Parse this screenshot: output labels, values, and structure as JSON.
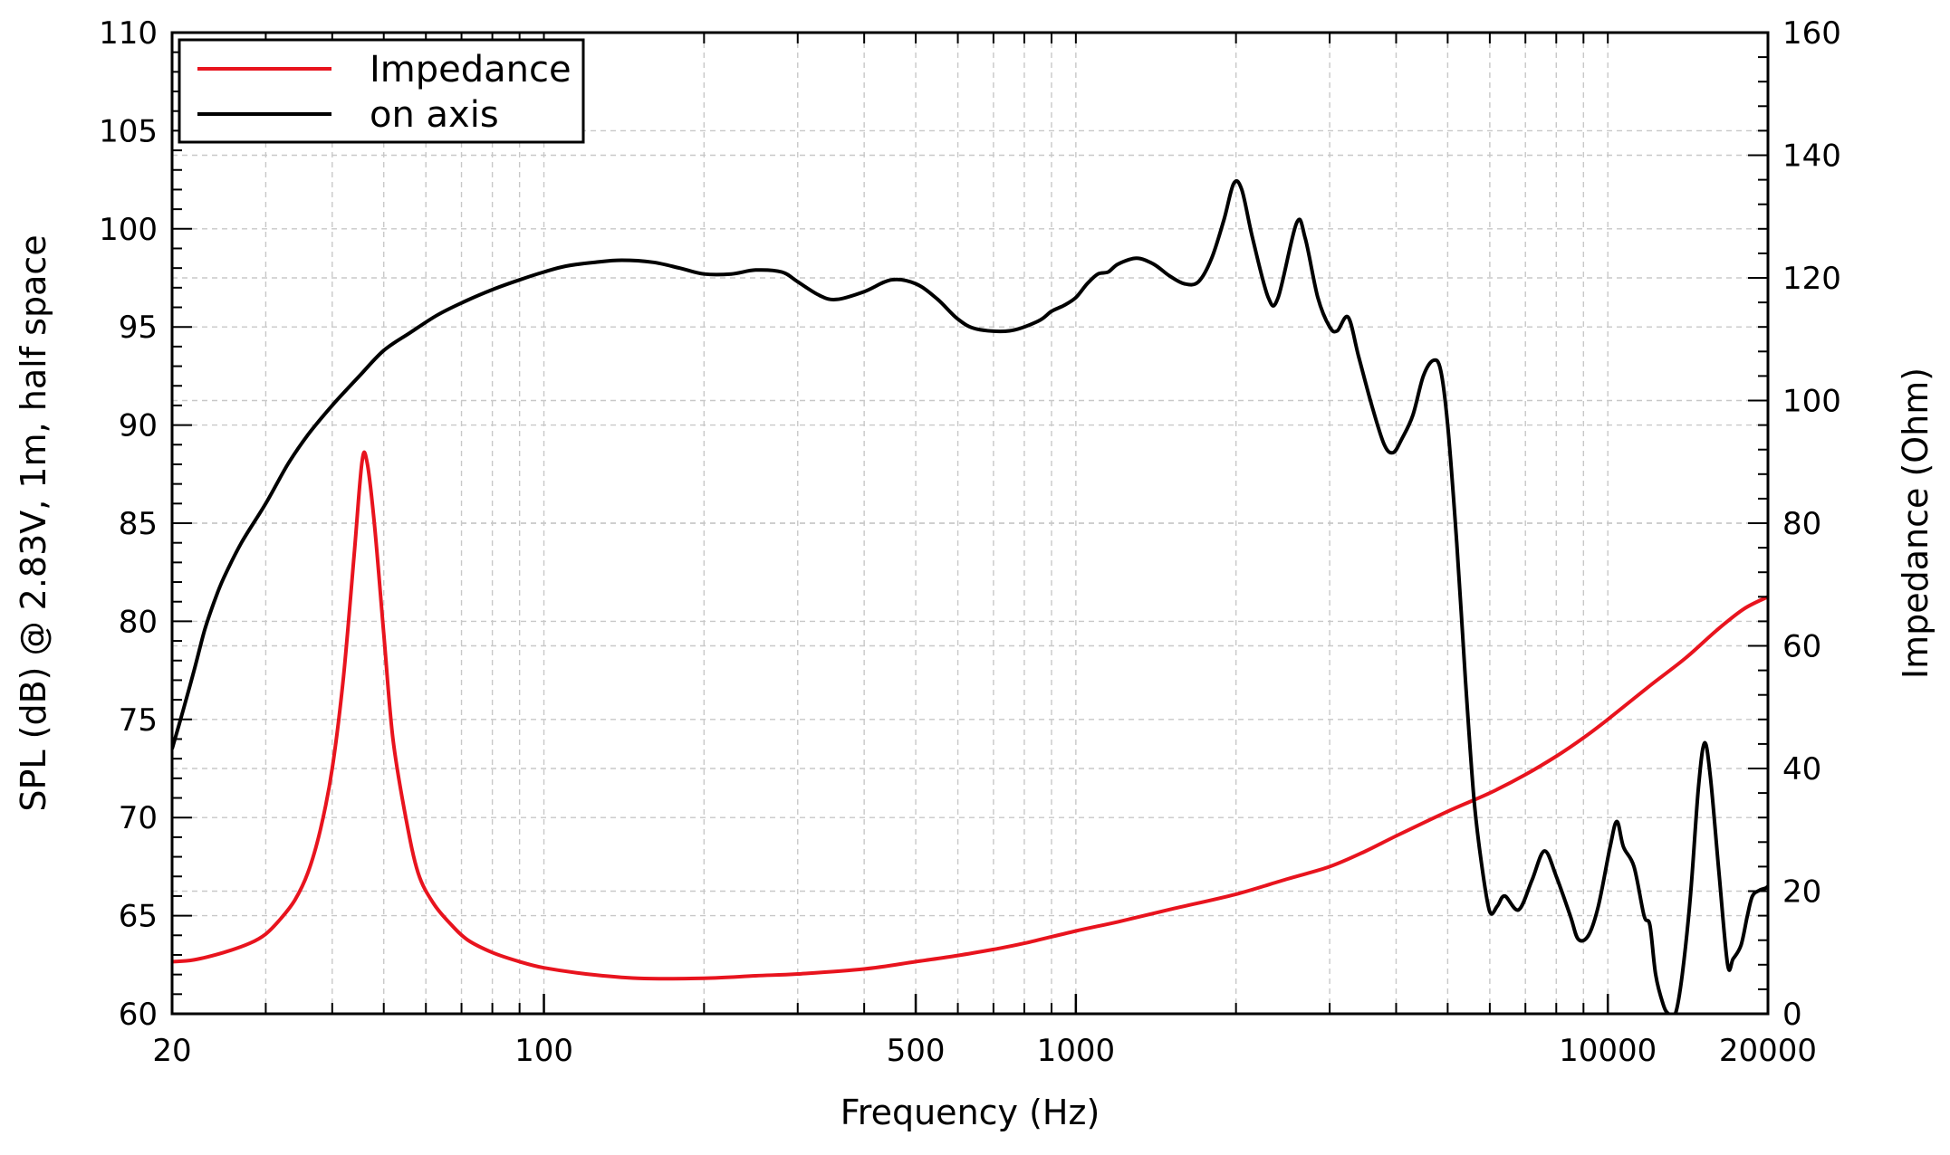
{
  "chart_data": {
    "type": "line",
    "title": "",
    "xlabel": "Frequency (Hz)",
    "ylabel": "SPL (dB) @ 2.83V, 1m, half space",
    "y2label": "Impedance (Ohm)",
    "xscale": "log",
    "xlim": [
      20,
      20000
    ],
    "ylim": [
      60,
      110
    ],
    "y2lim": [
      0,
      160
    ],
    "grid": true,
    "legend_position": "top-left",
    "x_ticks": [
      {
        "value": 20,
        "label": "20"
      },
      {
        "value": 100,
        "label": "100"
      },
      {
        "value": 500,
        "label": "500"
      },
      {
        "value": 1000,
        "label": "1000"
      },
      {
        "value": 10000,
        "label": "10000"
      },
      {
        "value": 20000,
        "label": "20000"
      }
    ],
    "y_ticks": [
      {
        "value": 60,
        "label": "60"
      },
      {
        "value": 65,
        "label": "65"
      },
      {
        "value": 70,
        "label": "70"
      },
      {
        "value": 75,
        "label": "75"
      },
      {
        "value": 80,
        "label": "80"
      },
      {
        "value": 85,
        "label": "85"
      },
      {
        "value": 90,
        "label": "90"
      },
      {
        "value": 95,
        "label": "95"
      },
      {
        "value": 100,
        "label": "100"
      },
      {
        "value": 105,
        "label": "105"
      },
      {
        "value": 110,
        "label": "110"
      }
    ],
    "y2_ticks": [
      {
        "value": 0,
        "label": "0"
      },
      {
        "value": 20,
        "label": "20"
      },
      {
        "value": 40,
        "label": "40"
      },
      {
        "value": 60,
        "label": "60"
      },
      {
        "value": 80,
        "label": "80"
      },
      {
        "value": 100,
        "label": "100"
      },
      {
        "value": 120,
        "label": "120"
      },
      {
        "value": 140,
        "label": "140"
      },
      {
        "value": 160,
        "label": "160"
      }
    ],
    "series": [
      {
        "name": "Impedance",
        "axis": "right",
        "color": "#e8141e",
        "points": [
          [
            20,
            8.5
          ],
          [
            22,
            8.8
          ],
          [
            25,
            10.0
          ],
          [
            28,
            11.5
          ],
          [
            30,
            13.0
          ],
          [
            32,
            15.5
          ],
          [
            34,
            18.5
          ],
          [
            36,
            23.0
          ],
          [
            38,
            30.0
          ],
          [
            40,
            40.0
          ],
          [
            42,
            55.0
          ],
          [
            44,
            75.0
          ],
          [
            45.5,
            90.0
          ],
          [
            46.5,
            90.0
          ],
          [
            48,
            80.0
          ],
          [
            50,
            62.0
          ],
          [
            52,
            45.0
          ],
          [
            55,
            32.0
          ],
          [
            58,
            23.0
          ],
          [
            62,
            18.0
          ],
          [
            67,
            14.5
          ],
          [
            72,
            12.0
          ],
          [
            80,
            10.0
          ],
          [
            90,
            8.5
          ],
          [
            100,
            7.5
          ],
          [
            120,
            6.5
          ],
          [
            150,
            5.8
          ],
          [
            200,
            5.8
          ],
          [
            250,
            6.2
          ],
          [
            300,
            6.5
          ],
          [
            400,
            7.3
          ],
          [
            500,
            8.5
          ],
          [
            600,
            9.5
          ],
          [
            700,
            10.5
          ],
          [
            800,
            11.5
          ],
          [
            1000,
            13.5
          ],
          [
            1200,
            15.0
          ],
          [
            1500,
            17.0
          ],
          [
            2000,
            19.5
          ],
          [
            2500,
            22.0
          ],
          [
            3000,
            24.0
          ],
          [
            3500,
            26.5
          ],
          [
            4000,
            29.0
          ],
          [
            5000,
            33.0
          ],
          [
            6000,
            36.0
          ],
          [
            7000,
            39.0
          ],
          [
            8000,
            42.0
          ],
          [
            9000,
            45.0
          ],
          [
            10000,
            48.0
          ],
          [
            12000,
            53.5
          ],
          [
            14000,
            58.0
          ],
          [
            16000,
            62.5
          ],
          [
            18000,
            66.0
          ],
          [
            20000,
            68.0
          ]
        ]
      },
      {
        "name": "on axis",
        "axis": "left",
        "color": "#000000",
        "points": [
          [
            20,
            73.5
          ],
          [
            21,
            75.5
          ],
          [
            22,
            77.5
          ],
          [
            23,
            79.5
          ],
          [
            24,
            81.0
          ],
          [
            25,
            82.2
          ],
          [
            27,
            84.0
          ],
          [
            30,
            86.0
          ],
          [
            33,
            88.0
          ],
          [
            36,
            89.5
          ],
          [
            40,
            91.0
          ],
          [
            45,
            92.5
          ],
          [
            50,
            93.8
          ],
          [
            56,
            94.7
          ],
          [
            63,
            95.6
          ],
          [
            71,
            96.3
          ],
          [
            80,
            96.9
          ],
          [
            90,
            97.4
          ],
          [
            100,
            97.8
          ],
          [
            110,
            98.1
          ],
          [
            125,
            98.3
          ],
          [
            140,
            98.4
          ],
          [
            160,
            98.3
          ],
          [
            180,
            98.0
          ],
          [
            200,
            97.7
          ],
          [
            225,
            97.7
          ],
          [
            250,
            97.9
          ],
          [
            280,
            97.8
          ],
          [
            300,
            97.3
          ],
          [
            330,
            96.6
          ],
          [
            355,
            96.4
          ],
          [
            400,
            96.8
          ],
          [
            450,
            97.4
          ],
          [
            500,
            97.2
          ],
          [
            550,
            96.4
          ],
          [
            600,
            95.4
          ],
          [
            650,
            94.9
          ],
          [
            750,
            94.8
          ],
          [
            850,
            95.3
          ],
          [
            900,
            95.8
          ],
          [
            950,
            96.1
          ],
          [
            1000,
            96.5
          ],
          [
            1050,
            97.2
          ],
          [
            1100,
            97.7
          ],
          [
            1150,
            97.8
          ],
          [
            1200,
            98.2
          ],
          [
            1300,
            98.5
          ],
          [
            1400,
            98.2
          ],
          [
            1500,
            97.6
          ],
          [
            1600,
            97.2
          ],
          [
            1700,
            97.3
          ],
          [
            1800,
            98.5
          ],
          [
            1900,
            100.5
          ],
          [
            1980,
            102.3
          ],
          [
            2050,
            102.0
          ],
          [
            2150,
            99.5
          ],
          [
            2300,
            96.5
          ],
          [
            2400,
            96.5
          ],
          [
            2600,
            100.3
          ],
          [
            2700,
            99.5
          ],
          [
            2850,
            96.5
          ],
          [
            3000,
            95.0
          ],
          [
            3100,
            94.8
          ],
          [
            3250,
            95.5
          ],
          [
            3400,
            93.5
          ],
          [
            3600,
            91.0
          ],
          [
            3800,
            89.0
          ],
          [
            3950,
            88.6
          ],
          [
            4100,
            89.3
          ],
          [
            4300,
            90.5
          ],
          [
            4500,
            92.5
          ],
          [
            4700,
            93.3
          ],
          [
            4850,
            92.8
          ],
          [
            5000,
            90.0
          ],
          [
            5200,
            84.0
          ],
          [
            5400,
            77.0
          ],
          [
            5600,
            71.0
          ],
          [
            5800,
            67.5
          ],
          [
            6000,
            65.2
          ],
          [
            6200,
            65.5
          ],
          [
            6400,
            66.0
          ],
          [
            6800,
            65.3
          ],
          [
            7200,
            66.8
          ],
          [
            7600,
            68.3
          ],
          [
            8000,
            67.0
          ],
          [
            8500,
            65.0
          ],
          [
            8800,
            63.8
          ],
          [
            9200,
            64.0
          ],
          [
            9600,
            65.5
          ],
          [
            10100,
            68.5
          ],
          [
            10400,
            69.8
          ],
          [
            10700,
            68.5
          ],
          [
            11200,
            67.5
          ],
          [
            11700,
            65.0
          ],
          [
            12000,
            64.5
          ],
          [
            12300,
            62.0
          ],
          [
            12700,
            60.5
          ],
          [
            13000,
            60.0
          ],
          [
            13400,
            60.0
          ],
          [
            13800,
            62.0
          ],
          [
            14300,
            66.0
          ],
          [
            14800,
            71.5
          ],
          [
            15200,
            73.8
          ],
          [
            15600,
            72.0
          ],
          [
            16200,
            67.0
          ],
          [
            16800,
            62.5
          ],
          [
            17200,
            62.8
          ],
          [
            17800,
            63.5
          ],
          [
            18300,
            65.0
          ],
          [
            18700,
            66.0
          ],
          [
            19300,
            66.3
          ],
          [
            19800,
            66.4
          ],
          [
            20000,
            66.5
          ]
        ]
      }
    ]
  }
}
